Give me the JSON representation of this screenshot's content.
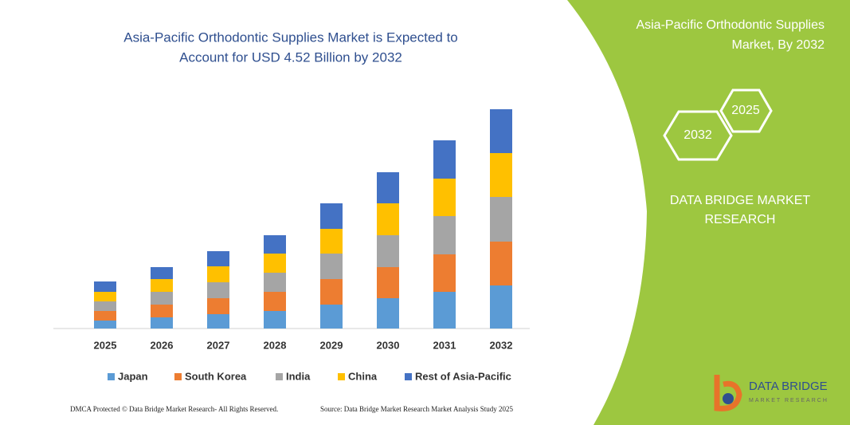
{
  "chart_data": {
    "type": "bar",
    "stacked": true,
    "title": [
      "Asia-Pacific Orthodontic Supplies Market is Expected to",
      "Account for USD 4.52 Billion by 2032"
    ],
    "categories": [
      "2025",
      "2026",
      "2027",
      "2028",
      "2029",
      "2030",
      "2031",
      "2032"
    ],
    "series": [
      {
        "name": "Japan",
        "color": "#5b9bd5",
        "values": [
          10,
          14,
          18,
          22,
          30,
          38,
          46,
          54
        ]
      },
      {
        "name": "South Korea",
        "color": "#ed7d31",
        "values": [
          12,
          16,
          20,
          24,
          32,
          39,
          47,
          55
        ]
      },
      {
        "name": "India",
        "color": "#a5a5a5",
        "values": [
          12,
          16,
          20,
          24,
          32,
          40,
          48,
          56
        ]
      },
      {
        "name": "China",
        "color": "#ffc000",
        "values": [
          12,
          16,
          20,
          24,
          31,
          40,
          47,
          55
        ]
      },
      {
        "name": "Rest of Asia-Pacific",
        "color": "#4472c4",
        "values": [
          13,
          15,
          19,
          23,
          32,
          39,
          48,
          55
        ]
      }
    ],
    "ylim": [
      0,
      280
    ]
  },
  "panel": {
    "title": [
      "Asia-Pacific Orthodontic Supplies",
      "Market, By 2032"
    ],
    "hexagons": [
      "2025",
      "2032"
    ],
    "brand": [
      "DATA BRIDGE MARKET",
      "RESEARCH"
    ]
  },
  "logo": {
    "name": "DATA BRIDGE",
    "tagline": "MARKET RESEARCH"
  },
  "footer": {
    "left": "DMCA Protected © Data Bridge Market Research- All Rights Reserved.",
    "right": "Source: Data Bridge Market Research Market Analysis Study 2025"
  }
}
